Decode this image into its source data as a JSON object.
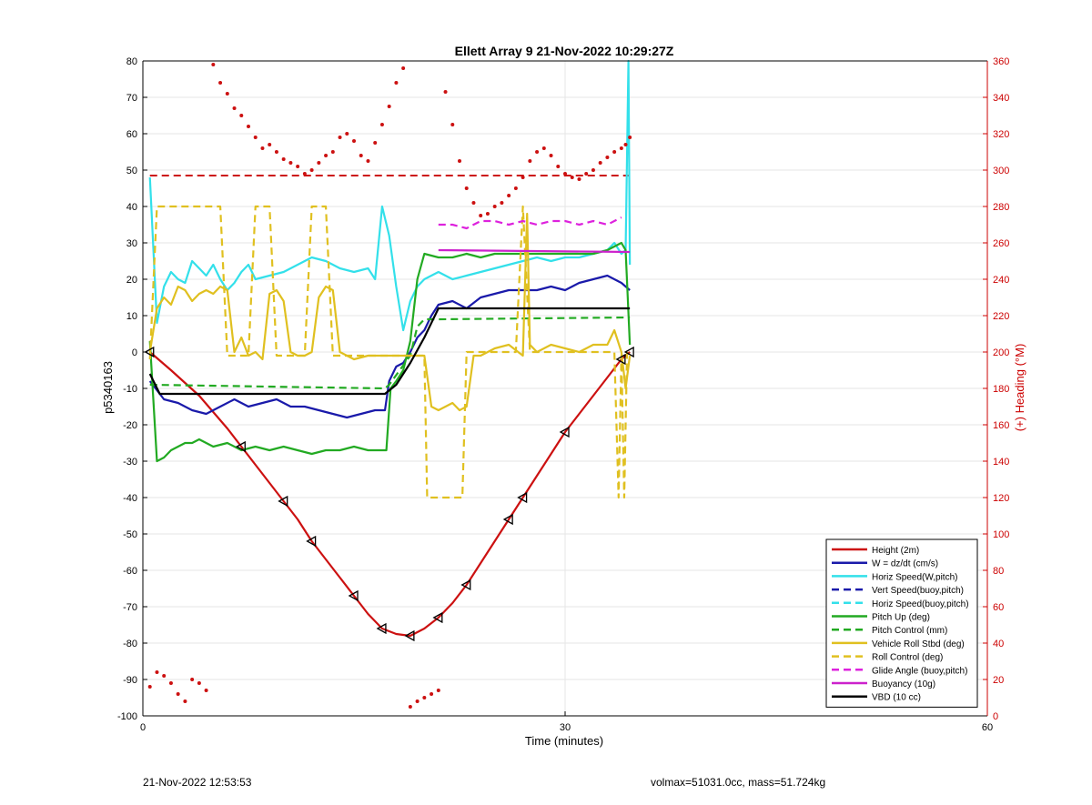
{
  "chart_data": {
    "type": "line",
    "title": "Ellett Array 9 21-Nov-2022 10:29:27Z",
    "xlabel": "Time (minutes)",
    "ylabel": "p5340163",
    "y2label": "(+) Heading (°M)",
    "xlim": [
      0,
      60
    ],
    "ylim": [
      -100,
      80
    ],
    "y2lim": [
      0,
      360
    ],
    "xticks": [
      0,
      30,
      60
    ],
    "yticks": [
      -100,
      -90,
      -80,
      -70,
      -60,
      -50,
      -40,
      -30,
      -20,
      -10,
      0,
      10,
      20,
      30,
      40,
      50,
      60,
      70,
      80
    ],
    "y2ticks": [
      0,
      20,
      40,
      60,
      80,
      100,
      120,
      140,
      160,
      180,
      200,
      220,
      240,
      260,
      280,
      300,
      320,
      340,
      360
    ],
    "grid": true,
    "legend_position": "bottom-right",
    "colors": {
      "axis_left": "#000000",
      "axis_right": "#cc0000",
      "grid": "#e6e6e6"
    },
    "series": [
      {
        "name": "Height (2m)",
        "color": "#cc1111",
        "style": "solid",
        "x": [
          0.5,
          2,
          4,
          6,
          7,
          8,
          9,
          10,
          11,
          12,
          13,
          14,
          15,
          16,
          17,
          18,
          19,
          20,
          21,
          22,
          23,
          24,
          25,
          26,
          27,
          28,
          29,
          30,
          31,
          32,
          33,
          34,
          34.6
        ],
        "y": [
          0,
          -5,
          -12,
          -21,
          -26,
          -31,
          -36,
          -41,
          -46,
          -52,
          -57,
          -62,
          -67,
          -72,
          -76,
          -77.5,
          -78,
          -76,
          -73,
          -69,
          -64,
          -58,
          -52,
          -46,
          -40,
          -34,
          -28,
          -22,
          -17,
          -12,
          -7,
          -2,
          0
        ]
      },
      {
        "name": "W = dz/dt (cm/s)",
        "color": "#1a1aaa",
        "style": "solid",
        "x": [
          0.5,
          1.5,
          2.5,
          3.5,
          4.5,
          5.5,
          6.5,
          7.5,
          8.5,
          9.5,
          10.5,
          11.5,
          12.5,
          13.5,
          14.5,
          15.5,
          16.5,
          17.2,
          17.5,
          18,
          18.5,
          19,
          19.5,
          20,
          20.5,
          21,
          22,
          23,
          24,
          25,
          26,
          27,
          28,
          29,
          30,
          31,
          32,
          33,
          34,
          34.6
        ],
        "y": [
          -8,
          -13,
          -14,
          -16,
          -17,
          -15,
          -13,
          -15,
          -14,
          -13,
          -15,
          -15,
          -16,
          -17,
          -18,
          -17,
          -16,
          -16,
          -8,
          -4,
          -3,
          0,
          4,
          6,
          10,
          13,
          14,
          12,
          15,
          16,
          17,
          17,
          17,
          18,
          17,
          19,
          20,
          21,
          19,
          17
        ]
      },
      {
        "name": "Horiz Speed(W,pitch)",
        "color": "#33e0ea",
        "style": "solid",
        "x": [
          0.5,
          1,
          1.5,
          2,
          2.5,
          3,
          3.5,
          4,
          4.5,
          5,
          5.5,
          6,
          6.5,
          7,
          7.5,
          8,
          9,
          10,
          11,
          12,
          13,
          14,
          15,
          16,
          16.5,
          17,
          17.5,
          18,
          18.5,
          19,
          19.5,
          20,
          20.5,
          21,
          22,
          23,
          24,
          25,
          26,
          27,
          28,
          29,
          30,
          31,
          32,
          33,
          33.5,
          34,
          34.3,
          34.5,
          34.6
        ],
        "y": [
          48,
          8,
          18,
          22,
          20,
          19,
          25,
          23,
          21,
          24,
          20,
          17,
          19,
          22,
          24,
          20,
          21,
          22,
          24,
          26,
          25,
          23,
          22,
          23,
          20,
          40,
          32,
          18,
          6,
          14,
          18,
          20,
          21,
          22,
          20,
          21,
          22,
          23,
          24,
          25,
          26,
          25,
          26,
          26,
          27,
          28,
          30,
          27,
          28,
          80,
          24
        ]
      },
      {
        "name": "Vert Speed(buoy,pitch)",
        "color": "#1a1aaa",
        "style": "dashed",
        "x": [],
        "y": []
      },
      {
        "name": "Horiz Speed(buoy,pitch)",
        "color": "#33e0ea",
        "style": "dashed",
        "x": [],
        "y": []
      },
      {
        "name": "Pitch Up (deg)",
        "color": "#22aa22",
        "style": "solid",
        "x": [
          0.5,
          1,
          1.5,
          2,
          2.5,
          3,
          3.5,
          4,
          5,
          6,
          7,
          8,
          9,
          10,
          11,
          12,
          13,
          14,
          15,
          16,
          17,
          17.3,
          17.6,
          18,
          18.5,
          19,
          19.5,
          20,
          21,
          22,
          23,
          24,
          25,
          26,
          27,
          28,
          29,
          30,
          31,
          32,
          33,
          33.5,
          34,
          34.3,
          34.6
        ],
        "y": [
          3,
          -30,
          -29,
          -27,
          -26,
          -25,
          -25,
          -24,
          -26,
          -25,
          -27,
          -26,
          -27,
          -26,
          -27,
          -28,
          -27,
          -27,
          -26,
          -27,
          -27,
          -27,
          -10,
          -8,
          -5,
          3,
          20,
          27,
          26,
          26,
          27,
          26,
          27,
          27,
          27,
          27,
          27,
          27,
          27,
          27,
          28,
          29,
          30,
          28,
          2
        ]
      },
      {
        "name": "Pitch Control (mm)",
        "color": "#22aa22",
        "style": "dashed",
        "x": [
          0.5,
          17.2,
          17.5,
          19,
          19.5,
          20,
          21,
          34.6
        ],
        "y": [
          -9,
          -10,
          -9,
          -1,
          7,
          9,
          9,
          9.5
        ]
      },
      {
        "name": "Vehicle Roll Stbd (deg)",
        "color": "#e0c020",
        "style": "solid",
        "x": [
          0.5,
          1,
          1.5,
          2,
          2.5,
          3,
          3.5,
          4,
          4.5,
          5,
          5.5,
          6,
          6.5,
          7,
          7.5,
          8,
          8.5,
          9,
          9.5,
          10,
          10.5,
          11,
          11.5,
          12,
          12.5,
          13,
          13.5,
          14,
          15,
          16,
          17,
          18,
          19,
          20,
          20.5,
          21,
          21.5,
          22,
          22.5,
          23,
          23.5,
          24,
          25,
          26,
          27,
          27.3,
          27.5,
          28,
          29,
          30,
          31,
          32,
          33,
          33.5,
          34,
          34.3,
          34.6
        ],
        "y": [
          0,
          12,
          15,
          13,
          18,
          17,
          14,
          16,
          17,
          16,
          18,
          17,
          0,
          4,
          -1,
          0,
          -2,
          16,
          17,
          14,
          0,
          -1,
          -1,
          0,
          15,
          18,
          17,
          0,
          -2,
          -1,
          -1,
          -1,
          -1,
          -1,
          -15,
          -16,
          -15,
          -14,
          -16,
          -15,
          -1,
          -1,
          1,
          2,
          -1,
          38,
          2,
          0,
          2,
          1,
          0,
          2,
          2,
          6,
          0,
          -10,
          -1
        ]
      },
      {
        "name": "Roll Control (deg)",
        "color": "#e0c020",
        "style": "dashed",
        "x": [
          0.5,
          1,
          2,
          3,
          4,
          5,
          5.5,
          6,
          6.5,
          7,
          7.5,
          8,
          8.5,
          9,
          9.5,
          10,
          10.5,
          11,
          11.5,
          12,
          12.5,
          13,
          13.5,
          14,
          15,
          16,
          17,
          18,
          19,
          20,
          20.2,
          21,
          21.5,
          22,
          22.5,
          22.7,
          23,
          24,
          25,
          26,
          26.5,
          27,
          27.5,
          28,
          29,
          30,
          31,
          32,
          33,
          33.5,
          33.8,
          34,
          34.2,
          34.4,
          34.6
        ],
        "y": [
          -2,
          40,
          40,
          40,
          40,
          40,
          40,
          -1,
          -1,
          -1,
          -1,
          40,
          40,
          40,
          -1,
          -1,
          -1,
          -1,
          -1,
          40,
          40,
          40,
          -1,
          -1,
          -1,
          -1,
          -1,
          -1,
          -1,
          -1,
          -40,
          -40,
          -40,
          -40,
          -40,
          -40,
          0,
          0,
          0,
          0,
          0,
          40,
          0,
          0,
          0,
          0,
          0,
          0,
          0,
          0,
          -40,
          -1,
          -40,
          0,
          0
        ]
      },
      {
        "name": "Glide Angle (buoy,pitch)",
        "color": "#dd22dd",
        "style": "dashed",
        "x": [
          21,
          22,
          23,
          24,
          25,
          26,
          27,
          28,
          29,
          30,
          31,
          32,
          33,
          34
        ],
        "y": [
          35,
          35,
          34,
          36,
          36,
          35,
          36,
          35,
          36,
          36,
          35,
          36,
          35,
          37
        ]
      },
      {
        "name": "Buoyancy (10g)",
        "color": "#cc22cc",
        "style": "solid",
        "x": [
          21,
          34.6
        ],
        "y": [
          28,
          27.5
        ]
      },
      {
        "name": "VBD (10 cc)",
        "color": "#000000",
        "style": "solid",
        "x": [
          0.5,
          1.2,
          17.2,
          18,
          19,
          20,
          21,
          34.6
        ],
        "y": [
          -6,
          -11.5,
          -11.5,
          -9,
          -3,
          4,
          12,
          12
        ]
      }
    ],
    "heading_series": {
      "name": "(+) Heading (°M)",
      "axis": "right",
      "marker": "dot",
      "color": "#cc1111",
      "x": [
        0.5,
        1,
        1.5,
        2,
        2.5,
        3,
        3.5,
        4,
        4.5,
        5,
        5.5,
        6,
        6.5,
        7,
        7.5,
        8,
        8.5,
        9,
        9.5,
        10,
        10.5,
        11,
        11.5,
        12,
        12.5,
        13,
        13.5,
        14,
        14.5,
        15,
        15.5,
        16,
        16.5,
        17,
        17.5,
        18,
        18.5,
        19,
        19.5,
        20,
        20.5,
        21,
        21.5,
        22,
        22.5,
        23,
        23.5,
        24,
        24.5,
        25,
        25.5,
        26,
        26.5,
        27,
        27.5,
        28,
        28.5,
        29,
        29.5,
        30,
        30.5,
        31,
        31.5,
        32,
        32.5,
        33,
        33.5,
        34,
        34.3,
        34.6
      ],
      "y": [
        16,
        24,
        22,
        18,
        12,
        8,
        20,
        18,
        14,
        358,
        348,
        342,
        334,
        330,
        324,
        318,
        312,
        314,
        310,
        306,
        304,
        302,
        298,
        300,
        304,
        308,
        310,
        318,
        320,
        316,
        308,
        305,
        315,
        325,
        335,
        348,
        356,
        5,
        8,
        10,
        12,
        14,
        343,
        325,
        305,
        290,
        282,
        275,
        276,
        280,
        282,
        286,
        290,
        296,
        305,
        310,
        312,
        308,
        302,
        298,
        296,
        295,
        298,
        300,
        304,
        307,
        310,
        312,
        314,
        318
      ]
    },
    "heading_reference": {
      "name": "",
      "color": "#cc1111",
      "style": "dashed",
      "x": [
        0.5,
        34.6
      ],
      "y": [
        297,
        297
      ]
    }
  },
  "footer": {
    "left_text": "21-Nov-2022 12:53:53",
    "right_text": "volmax=51031.0cc, mass=51.724kg"
  }
}
